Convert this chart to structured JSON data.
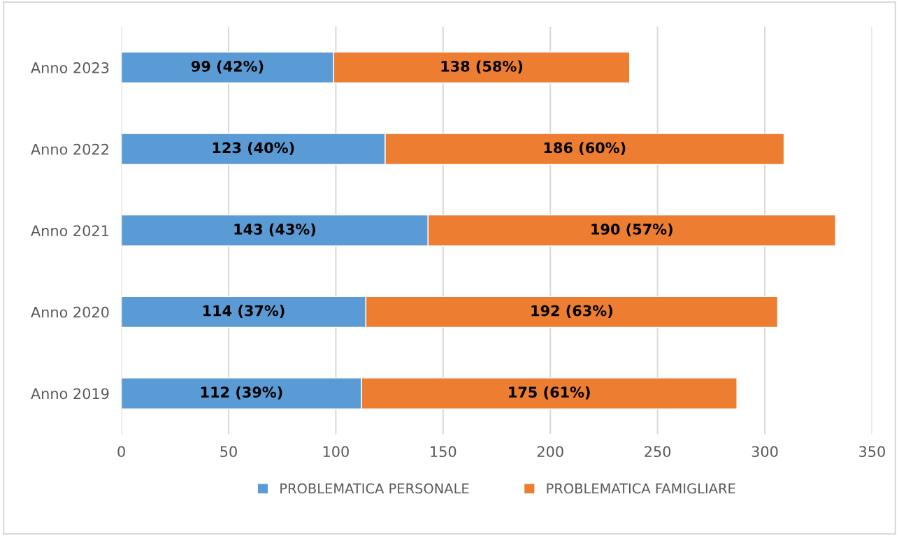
{
  "chart_data": {
    "type": "bar",
    "orientation": "horizontal",
    "stacked": true,
    "categories": [
      "Anno 2023",
      "Anno 2022",
      "Anno 2021",
      "Anno 2020",
      "Anno 2019"
    ],
    "series": [
      {
        "name": "PROBLEMATICA PERSONALE",
        "color": "#5b9bd5",
        "values": [
          99,
          123,
          143,
          114,
          112
        ],
        "value_labels": [
          "99 (42%)",
          "123 (40%)",
          "143 (43%)",
          "114 (37%)",
          "112 (39%)"
        ]
      },
      {
        "name": "PROBLEMATICA FAMIGLIARE",
        "color": "#ed7d31",
        "values": [
          138,
          186,
          190,
          192,
          175
        ],
        "value_labels": [
          "138 (58%)",
          "186 (60%)",
          "190 (57%)",
          "192 (63%)",
          "175 (61%)"
        ]
      }
    ],
    "xlim": [
      0,
      350
    ],
    "xticks": [
      0,
      50,
      100,
      150,
      200,
      250,
      300,
      350
    ],
    "grid": "x",
    "legend": "bottom"
  }
}
